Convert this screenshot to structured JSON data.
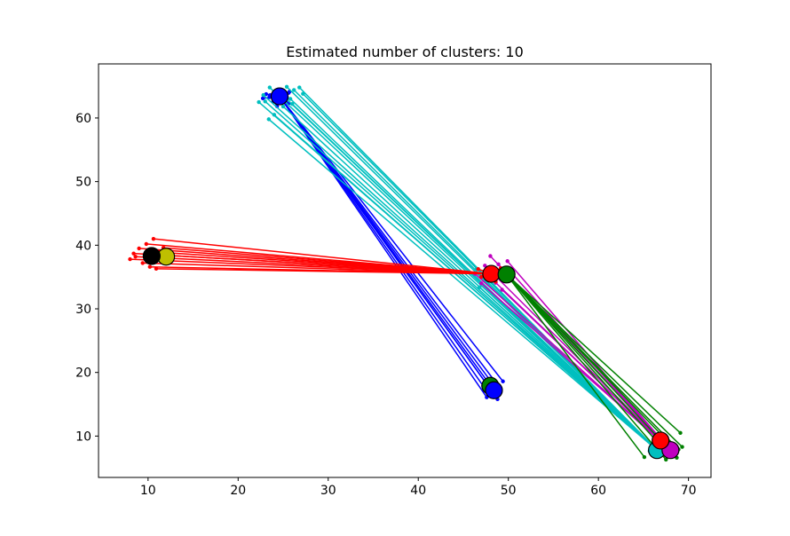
{
  "chart_data": {
    "type": "scatter",
    "title": "Estimated number of clusters: 10",
    "xlabel": "",
    "ylabel": "",
    "xlim": [
      4.5,
      72.5
    ],
    "ylim": [
      3.5,
      68.5
    ],
    "xticks": [
      10,
      20,
      30,
      40,
      50,
      60,
      70
    ],
    "yticks": [
      10,
      20,
      30,
      40,
      50,
      60
    ],
    "grid": false,
    "legend": "none",
    "clusters": [
      {
        "color": "#0000ff",
        "center": [
          24.6,
          63.4
        ],
        "spread": [
          0.9,
          0.6
        ],
        "n": 25,
        "members": [
          [
            47.6,
            16.1
          ],
          [
            48.3,
            16.8
          ],
          [
            49.1,
            17.5
          ],
          [
            47.2,
            17.9
          ],
          [
            48.8,
            15.8
          ],
          [
            49.4,
            18.6
          ],
          [
            47.9,
            18.9
          ],
          [
            48.5,
            17.0
          ]
        ]
      },
      {
        "color": "#00bfbf",
        "center": [
          66.5,
          7.8
        ],
        "spread": [
          0.5,
          0.4
        ],
        "n": 10,
        "members": [
          [
            23.5,
            64.8
          ],
          [
            24.3,
            64.4
          ],
          [
            25.4,
            64.9
          ],
          [
            26.2,
            64.4
          ],
          [
            26.8,
            64.8
          ],
          [
            22.8,
            63.6
          ],
          [
            23.0,
            62.6
          ],
          [
            22.3,
            62.5
          ],
          [
            23.4,
            59.8
          ],
          [
            25.0,
            61.8
          ],
          [
            27.2,
            63.8
          ],
          [
            46.5,
            36.3
          ],
          [
            46.8,
            33.4
          ],
          [
            25.8,
            63.0
          ],
          [
            24.0,
            60.5
          ],
          [
            26.0,
            62.2
          ]
        ]
      },
      {
        "color": "#bf00bf",
        "center": [
          68.0,
          7.8
        ],
        "spread": [
          0.4,
          0.4
        ],
        "n": 10,
        "members": [
          [
            48.0,
            38.3
          ],
          [
            49.9,
            37.5
          ],
          [
            46.3,
            35.5
          ],
          [
            48.6,
            34.1
          ],
          [
            49.3,
            33.0
          ],
          [
            47.4,
            36.8
          ],
          [
            50.2,
            35.9
          ],
          [
            48.9,
            37.0
          ],
          [
            47.0,
            34.0
          ]
        ]
      },
      {
        "color": "#ff0000",
        "center": [
          48.1,
          35.5
        ],
        "spread": [
          0.7,
          0.6
        ],
        "n": 15,
        "members": [
          [
            8.0,
            37.8
          ],
          [
            9.0,
            39.5
          ],
          [
            9.8,
            40.2
          ],
          [
            10.6,
            41.0
          ],
          [
            8.4,
            38.7
          ],
          [
            10.2,
            36.6
          ],
          [
            11.7,
            39.6
          ],
          [
            9.4,
            37.2
          ],
          [
            10.9,
            36.3
          ],
          [
            8.6,
            38.2
          ],
          [
            11.2,
            38.9
          ],
          [
            9.7,
            38.6
          ]
        ]
      },
      {
        "color": "#008000",
        "center": [
          49.8,
          35.4
        ],
        "spread": [
          0.4,
          0.4
        ],
        "n": 10,
        "members": [
          [
            69.1,
            10.5
          ],
          [
            69.3,
            8.3
          ],
          [
            68.7,
            6.6
          ],
          [
            65.1,
            6.7
          ],
          [
            67.5,
            6.3
          ],
          [
            66.2,
            9.6
          ],
          [
            68.9,
            7.9
          ],
          [
            67.0,
            10.2
          ]
        ]
      },
      {
        "color": "#ff0000",
        "center": [
          66.9,
          9.3
        ],
        "spread": [
          0.3,
          0.3
        ],
        "n": 5,
        "members": []
      },
      {
        "color": "#bfbf00",
        "center": [
          12.0,
          38.2
        ],
        "spread": [
          0.3,
          0.3
        ],
        "n": 5,
        "members": []
      },
      {
        "color": "#000000",
        "center": [
          10.4,
          38.3
        ],
        "spread": [
          0.3,
          0.3
        ],
        "n": 5,
        "members": []
      },
      {
        "color": "#008000",
        "center": [
          48.0,
          17.9
        ],
        "spread": [
          0.4,
          0.4
        ],
        "n": 5,
        "members": []
      },
      {
        "color": "#0000ff",
        "center": [
          48.4,
          17.2
        ],
        "spread": [
          0.2,
          0.2
        ],
        "n": 3,
        "members": []
      }
    ]
  }
}
